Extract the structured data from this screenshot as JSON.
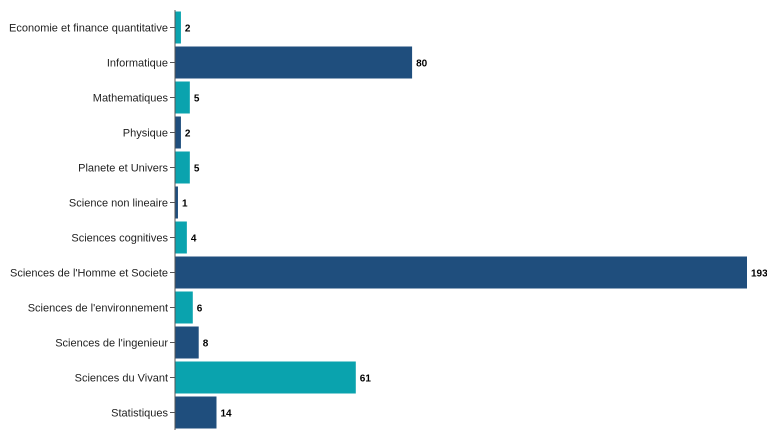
{
  "chart_data": {
    "type": "bar",
    "orientation": "horizontal",
    "categories": [
      "Economie et finance quantitative",
      "Informatique",
      "Mathematiques",
      "Physique",
      "Planete et Univers",
      "Science non lineaire",
      "Sciences cognitives",
      "Sciences de l'Homme et Societe",
      "Sciences de l'environnement",
      "Sciences de l'ingenieur",
      "Sciences du Vivant",
      "Statistiques"
    ],
    "values": [
      2,
      80,
      5,
      2,
      5,
      1,
      4,
      193,
      6,
      8,
      61,
      14
    ],
    "value_labels": [
      "2",
      "80",
      "5",
      "2",
      "5",
      "1",
      "4",
      "193",
      "6",
      "8",
      "61",
      "14"
    ],
    "bar_colors": [
      "#0aa3ae",
      "#1f4e7d",
      "#0aa3ae",
      "#1f4e7d",
      "#0aa3ae",
      "#1f4e7d",
      "#0aa3ae",
      "#1f4e7d",
      "#0aa3ae",
      "#1f4e7d",
      "#0aa3ae",
      "#1f4e7d"
    ],
    "xlim": [
      0,
      193
    ],
    "grid": false,
    "legend": "none",
    "title": "",
    "xlabel": "",
    "ylabel": ""
  }
}
